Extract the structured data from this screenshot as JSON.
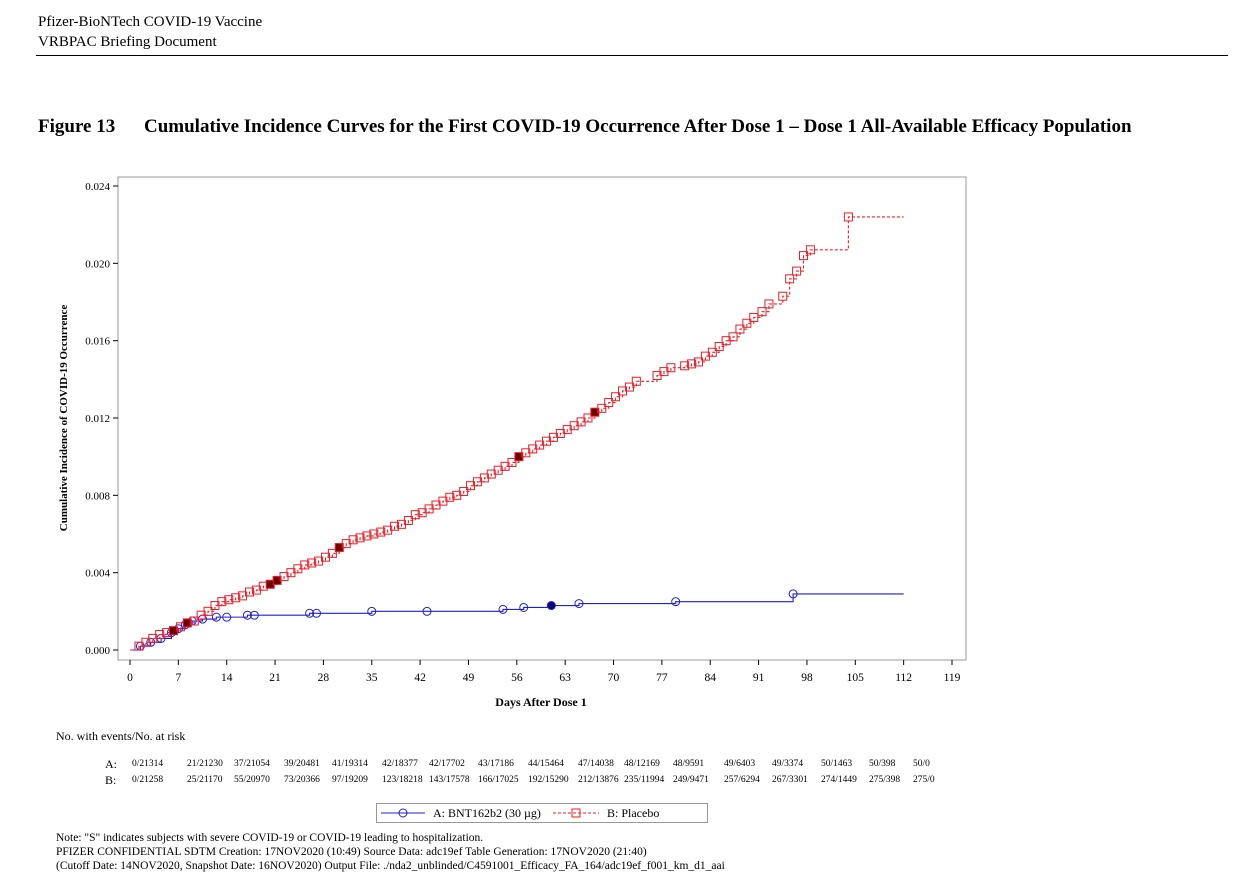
{
  "header": {
    "line1": "Pfizer-BioNTech COVID-19 Vaccine",
    "line2": "VRBPAC Briefing Document"
  },
  "figure": {
    "label": "Figure 13",
    "title": "Cumulative Incidence Curves for the First COVID-19 Occurrence After Dose 1 – Dose 1 All-Available Efficacy Population"
  },
  "chart_data": {
    "type": "line",
    "step": true,
    "xlabel": "Days After Dose 1",
    "ylabel": "Cumulative Incidence of COVID-19 Occurrence",
    "xlim": [
      0,
      119
    ],
    "ylim": [
      0,
      0.024
    ],
    "xticks": [
      "0",
      "7",
      "14",
      "21",
      "28",
      "35",
      "42",
      "49",
      "56",
      "63",
      "70",
      "77",
      "84",
      "91",
      "98",
      "105",
      "112",
      "119"
    ],
    "yticks": [
      "0.000",
      "0.004",
      "0.008",
      "0.012",
      "0.016",
      "0.020",
      "0.024"
    ],
    "grid": false,
    "legend_position": "bottom",
    "series": [
      {
        "name": "A: BNT162b2 (30 µg)",
        "color": "#1f1fd6",
        "marker": "circle",
        "line": "solid",
        "end_x": 112,
        "points": [
          [
            0,
            0
          ],
          [
            1.5,
            0.0002
          ],
          [
            3,
            0.0004
          ],
          [
            4.5,
            0.0006
          ],
          [
            6,
            0.0009
          ],
          [
            7,
            0.0011
          ],
          [
            8,
            0.0013
          ],
          [
            9,
            0.0015
          ],
          [
            10.5,
            0.0016
          ],
          [
            12.5,
            0.0017
          ],
          [
            14,
            0.0017
          ],
          [
            17,
            0.0018
          ],
          [
            18,
            0.0018
          ],
          [
            26,
            0.0019
          ],
          [
            27,
            0.0019
          ],
          [
            35,
            0.002
          ],
          [
            43,
            0.002
          ],
          [
            54,
            0.0021
          ],
          [
            57,
            0.0022
          ],
          [
            61,
            0.0023
          ],
          [
            65,
            0.0024
          ],
          [
            79,
            0.0025
          ],
          [
            96,
            0.0029
          ]
        ],
        "severe_x": [
          61
        ]
      },
      {
        "name": "B: Placebo",
        "color": "#e8202a",
        "marker": "square",
        "line": "dashed",
        "end_x": 112,
        "points": [
          [
            0,
            0
          ],
          [
            1.3,
            0.0002
          ],
          [
            2.3,
            0.0004
          ],
          [
            3.3,
            0.0006
          ],
          [
            4.3,
            0.0008
          ],
          [
            5.3,
            0.0009
          ],
          [
            6.3,
            0.001
          ],
          [
            7.3,
            0.0012
          ],
          [
            8.3,
            0.0014
          ],
          [
            9.3,
            0.0015
          ],
          [
            10.3,
            0.0018
          ],
          [
            11.3,
            0.002
          ],
          [
            12.3,
            0.0023
          ],
          [
            13.3,
            0.0025
          ],
          [
            14.3,
            0.0026
          ],
          [
            15.3,
            0.0027
          ],
          [
            16.3,
            0.0028
          ],
          [
            17.3,
            0.003
          ],
          [
            18.3,
            0.0031
          ],
          [
            19.3,
            0.0033
          ],
          [
            20.3,
            0.0034
          ],
          [
            21.3,
            0.0036
          ],
          [
            22.3,
            0.0038
          ],
          [
            23.3,
            0.004
          ],
          [
            24.3,
            0.0042
          ],
          [
            25.3,
            0.0044
          ],
          [
            26.3,
            0.0045
          ],
          [
            27.3,
            0.0046
          ],
          [
            28.3,
            0.0048
          ],
          [
            29.3,
            0.005
          ],
          [
            30.3,
            0.0053
          ],
          [
            31.3,
            0.0055
          ],
          [
            32.3,
            0.0057
          ],
          [
            33.3,
            0.0058
          ],
          [
            34.3,
            0.0059
          ],
          [
            35.3,
            0.006
          ],
          [
            36.3,
            0.0061
          ],
          [
            37.3,
            0.0062
          ],
          [
            38.3,
            0.0064
          ],
          [
            39.3,
            0.0065
          ],
          [
            40.3,
            0.0067
          ],
          [
            41.3,
            0.007
          ],
          [
            42.3,
            0.0071
          ],
          [
            43.3,
            0.0073
          ],
          [
            44.3,
            0.0075
          ],
          [
            45.3,
            0.0077
          ],
          [
            46.3,
            0.0079
          ],
          [
            47.3,
            0.008
          ],
          [
            48.3,
            0.0082
          ],
          [
            49.3,
            0.0085
          ],
          [
            50.3,
            0.0087
          ],
          [
            51.3,
            0.0089
          ],
          [
            52.3,
            0.0091
          ],
          [
            53.3,
            0.0093
          ],
          [
            54.3,
            0.0095
          ],
          [
            55.3,
            0.0097
          ],
          [
            56.3,
            0.01
          ],
          [
            57.3,
            0.0102
          ],
          [
            58.3,
            0.0104
          ],
          [
            59.3,
            0.0106
          ],
          [
            60.3,
            0.0108
          ],
          [
            61.3,
            0.011
          ],
          [
            62.3,
            0.0112
          ],
          [
            63.3,
            0.0114
          ],
          [
            64.3,
            0.0116
          ],
          [
            65.3,
            0.0118
          ],
          [
            66.3,
            0.012
          ],
          [
            67.3,
            0.0123
          ],
          [
            68.3,
            0.0125
          ],
          [
            69.3,
            0.0128
          ],
          [
            70.3,
            0.0131
          ],
          [
            71.3,
            0.0134
          ],
          [
            72.3,
            0.0136
          ],
          [
            73.3,
            0.0139
          ],
          [
            76.3,
            0.0142
          ],
          [
            77.3,
            0.0144
          ],
          [
            78.3,
            0.0146
          ],
          [
            80.3,
            0.0147
          ],
          [
            81.3,
            0.0148
          ],
          [
            82.3,
            0.0149
          ],
          [
            83.3,
            0.0152
          ],
          [
            84.3,
            0.0154
          ],
          [
            85.3,
            0.0157
          ],
          [
            86.3,
            0.016
          ],
          [
            87.3,
            0.0162
          ],
          [
            88.3,
            0.0166
          ],
          [
            89.3,
            0.0169
          ],
          [
            90.3,
            0.0172
          ],
          [
            91.5,
            0.0175
          ],
          [
            92.5,
            0.0179
          ],
          [
            94.5,
            0.0183
          ],
          [
            95.5,
            0.0192
          ],
          [
            96.5,
            0.0196
          ],
          [
            97.5,
            0.0204
          ],
          [
            98.5,
            0.0207
          ],
          [
            104,
            0.0224
          ]
        ],
        "severe_x": [
          6.3,
          8.3,
          20.3,
          21.3,
          30.3,
          56.3,
          67.3
        ]
      }
    ]
  },
  "risk_table": {
    "title": "No. with events/No. at risk",
    "rows": [
      {
        "label": "A:",
        "values": [
          "0/21314",
          "21/21230",
          "37/21054",
          "39/20481",
          "41/19314",
          "42/18377",
          "42/17702",
          "43/17186",
          "44/15464",
          "47/14038",
          "48/12169",
          "48/9591",
          "49/6403",
          "49/3374",
          "50/1463",
          "50/398",
          "50/0"
        ]
      },
      {
        "label": "B:",
        "values": [
          "0/21258",
          "25/21170",
          "55/20970",
          "73/20366",
          "97/19209",
          "123/18218",
          "143/17578",
          "166/17025",
          "192/15290",
          "212/13876",
          "235/11994",
          "249/9471",
          "257/6294",
          "267/3301",
          "274/1449",
          "275/398",
          "275/0"
        ]
      }
    ]
  },
  "notes": [
    "Note: \"S\" indicates subjects with severe COVID-19 or COVID-19 leading to hospitalization.",
    "PFIZER CONFIDENTIAL  SDTM Creation: 17NOV2020 (10:49)  Source Data: adc19ef  Table Generation: 17NOV2020 (21:40)",
    "(Cutoff Date: 14NOV2020, Snapshot Date: 16NOV2020) Output File: ./nda2_unblinded/C4591001_Efficacy_FA_164/adc19ef_f001_km_d1_aai"
  ]
}
